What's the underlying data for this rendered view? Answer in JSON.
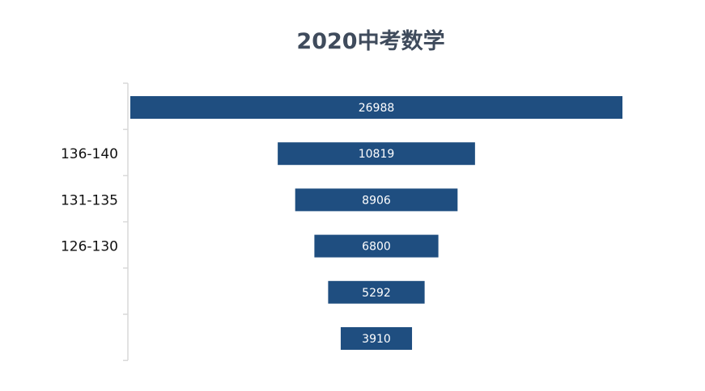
{
  "chart_data": {
    "type": "bar",
    "orientation": "horizontal-funnel",
    "title": "2020中考数学",
    "categories": [
      "",
      "136-140",
      "131-135",
      "126-130",
      "",
      ""
    ],
    "values": [
      26988,
      10819,
      8906,
      6800,
      5292,
      3910
    ],
    "data_labels": [
      "26988",
      "10819",
      "8906",
      "6800",
      "5292",
      "3910"
    ],
    "xlabel": "",
    "ylabel": "",
    "grid": false,
    "legend": "none",
    "colors": {
      "bar": "#1f4e80",
      "axis": "#d9d9d9",
      "title": "#3f4b5c"
    }
  }
}
